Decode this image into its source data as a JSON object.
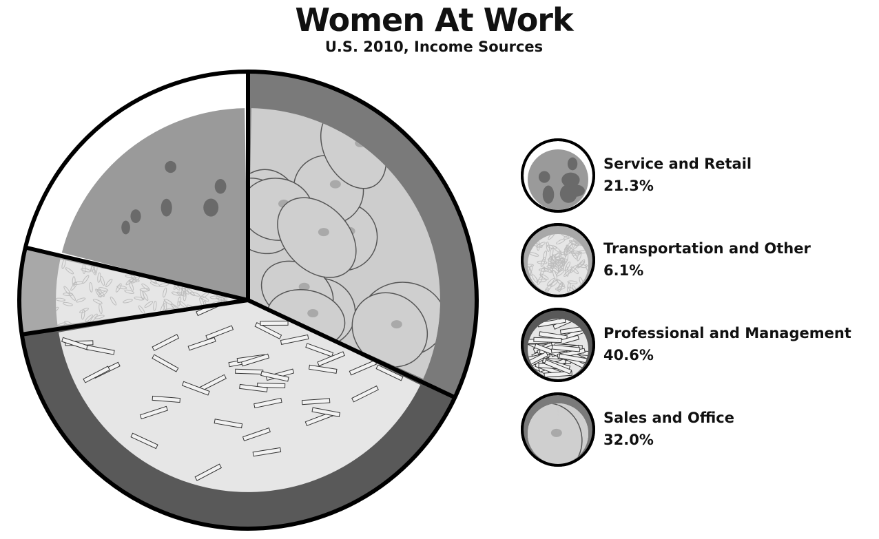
{
  "chart_data": {
    "type": "pie",
    "title": "Women At Work",
    "subtitle": "U.S. 2010, Income Sources",
    "slices": [
      {
        "label": "Service and Retail",
        "value": 21.3,
        "display": "21.3%",
        "color": "#9a9a9a",
        "ring": "#ffffff",
        "texture": "meat"
      },
      {
        "label": "Transportation and Other",
        "value": 6.1,
        "display": "6.1%",
        "color": "#e6e6e6",
        "ring": "#a8a8a8",
        "texture": "rice"
      },
      {
        "label": "Professional and Management",
        "value": 40.6,
        "display": "40.6%",
        "color": "#e6e6e6",
        "ring": "#595959",
        "texture": "fries"
      },
      {
        "label": "Sales and Office",
        "value": 32.0,
        "display": "32.0%",
        "color": "#cdcdcd",
        "ring": "#7a7a7a",
        "texture": "potatoes"
      }
    ],
    "start_angle_deg": 0,
    "direction": "counterclockwise",
    "legend_position": "right"
  }
}
